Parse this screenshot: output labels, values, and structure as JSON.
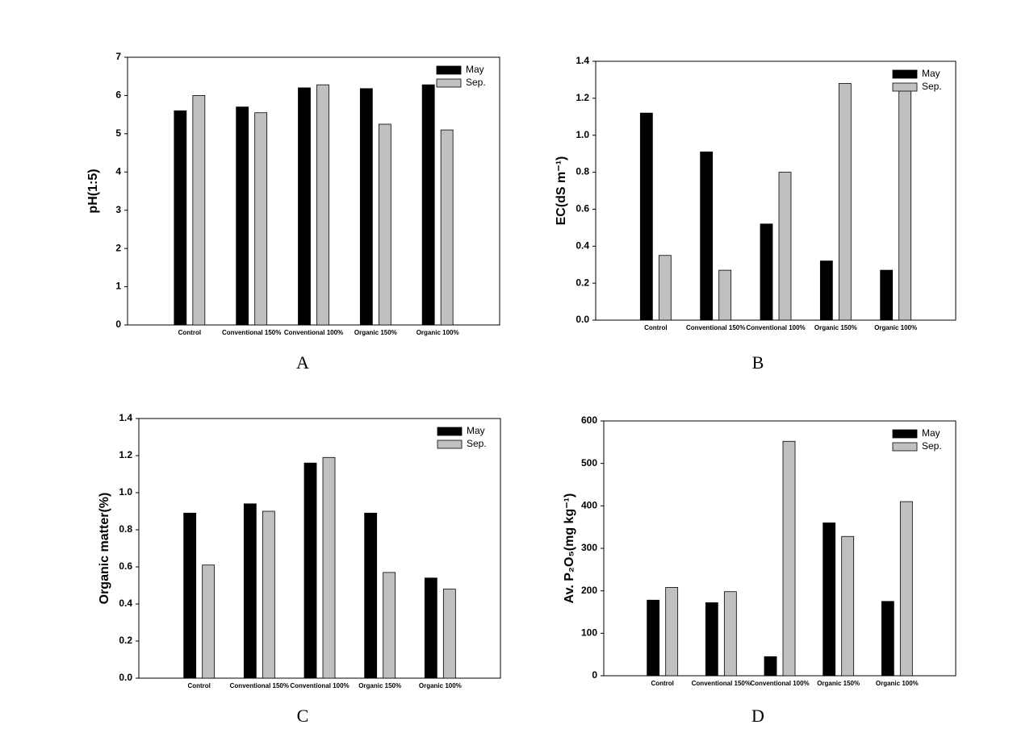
{
  "chart_data": [
    {
      "type": "bar",
      "caption": "A",
      "y_label": "pH(1:5)",
      "categories": [
        "Control",
        "Conventional 150%",
        "Conventional 100%",
        "Organic 150%",
        "Organic 100%"
      ],
      "series": [
        {
          "name": "May",
          "color": "#000000",
          "values": [
            5.6,
            5.7,
            6.2,
            6.18,
            6.28
          ]
        },
        {
          "name": "Sep.",
          "color": "#c0c0c0",
          "values": [
            6.0,
            5.55,
            6.28,
            5.25,
            5.1
          ]
        }
      ],
      "ylim": [
        0,
        7
      ],
      "yticks": [
        0,
        1,
        2,
        3,
        4,
        5,
        6,
        7
      ]
    },
    {
      "type": "bar",
      "caption": "B",
      "y_label": "EC(dS m⁻¹)",
      "categories": [
        "Control",
        "Conventional 150%",
        "Conventional 100%",
        "Organic 150%",
        "Organic 100%"
      ],
      "series": [
        {
          "name": "May",
          "color": "#000000",
          "values": [
            1.12,
            0.91,
            0.52,
            0.32,
            0.27
          ]
        },
        {
          "name": "Sep.",
          "color": "#c0c0c0",
          "values": [
            0.35,
            0.27,
            0.8,
            1.28,
            1.27
          ]
        }
      ],
      "ylim": [
        0,
        1.4
      ],
      "yticks": [
        {
          "value": 0,
          "label": "0.0"
        },
        0.2,
        0.4,
        0.6,
        0.8,
        {
          "value": 1,
          "label": "1.0"
        },
        1.2,
        1.4
      ]
    },
    {
      "type": "bar",
      "caption": "C",
      "y_label": "Organic matter(%)",
      "categories": [
        "Control",
        "Conventional 150%",
        "Conventional 100%",
        "Organic 150%",
        "Organic 100%"
      ],
      "series": [
        {
          "name": "May",
          "color": "#000000",
          "values": [
            0.89,
            0.94,
            1.16,
            0.89,
            0.54
          ]
        },
        {
          "name": "Sep.",
          "color": "#c0c0c0",
          "values": [
            0.61,
            0.9,
            1.19,
            0.57,
            0.48
          ]
        }
      ],
      "ylim": [
        0,
        1.4
      ],
      "yticks": [
        {
          "value": 0,
          "label": "0.0"
        },
        0.2,
        0.4,
        0.6,
        0.8,
        {
          "value": 1,
          "label": "1.0"
        },
        1.2,
        1.4
      ]
    },
    {
      "type": "bar",
      "caption": "D",
      "y_label": "Av. P₂O₅(mg kg⁻¹)",
      "categories": [
        "Control",
        "Conventional 150%",
        "Conventional 100%",
        "Organic 150%",
        "Organic 100%"
      ],
      "series": [
        {
          "name": "May",
          "color": "#000000",
          "values": [
            178,
            172,
            45,
            360,
            175
          ]
        },
        {
          "name": "Sep.",
          "color": "#c0c0c0",
          "values": [
            208,
            198,
            552,
            328,
            410
          ]
        }
      ],
      "ylim": [
        0,
        600
      ],
      "yticks": [
        0,
        100,
        200,
        300,
        400,
        500,
        600
      ]
    }
  ]
}
